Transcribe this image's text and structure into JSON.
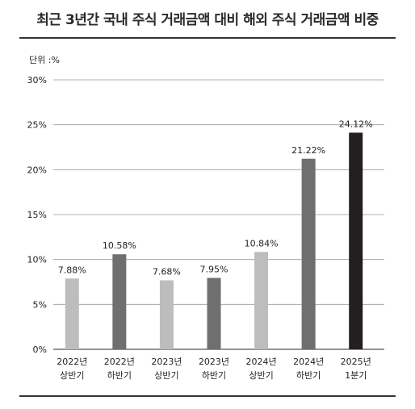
{
  "title": "최근 3년간 국내 주식 거래금액 대비 해외 주식 거래금액 비중",
  "unit_label": "단위 :%",
  "chart_data": {
    "type": "bar",
    "title": "최근 3년간 국내 주식 거래금액 대비 해외 주식 거래금액 비중",
    "ylabel": "",
    "xlabel": "",
    "ylim": [
      0,
      30
    ],
    "yticks": [
      "0%",
      "5%",
      "10%",
      "15%",
      "20%",
      "25%",
      "30%"
    ],
    "ytick_values": [
      0,
      5,
      10,
      15,
      20,
      25,
      30
    ],
    "grid": true,
    "categories": [
      [
        "2022년",
        "상반기"
      ],
      [
        "2022년",
        "하반기"
      ],
      [
        "2023년",
        "상반기"
      ],
      [
        "2023년",
        "하반기"
      ],
      [
        "2024년",
        "상반기"
      ],
      [
        "2024년",
        "하반기"
      ],
      [
        "2025년",
        "1분기"
      ]
    ],
    "values": [
      7.88,
      10.58,
      7.68,
      7.95,
      10.84,
      21.22,
      24.12
    ],
    "value_labels": [
      "7.88%",
      "10.58%",
      "7.68%",
      "7.95%",
      "10.84%",
      "21.22%",
      "24.12%"
    ],
    "bar_colors": [
      "#bdbdbd",
      "#6f6f6f",
      "#bdbdbd",
      "#6f6f6f",
      "#bdbdbd",
      "#6f6f6f",
      "#231f20"
    ]
  }
}
